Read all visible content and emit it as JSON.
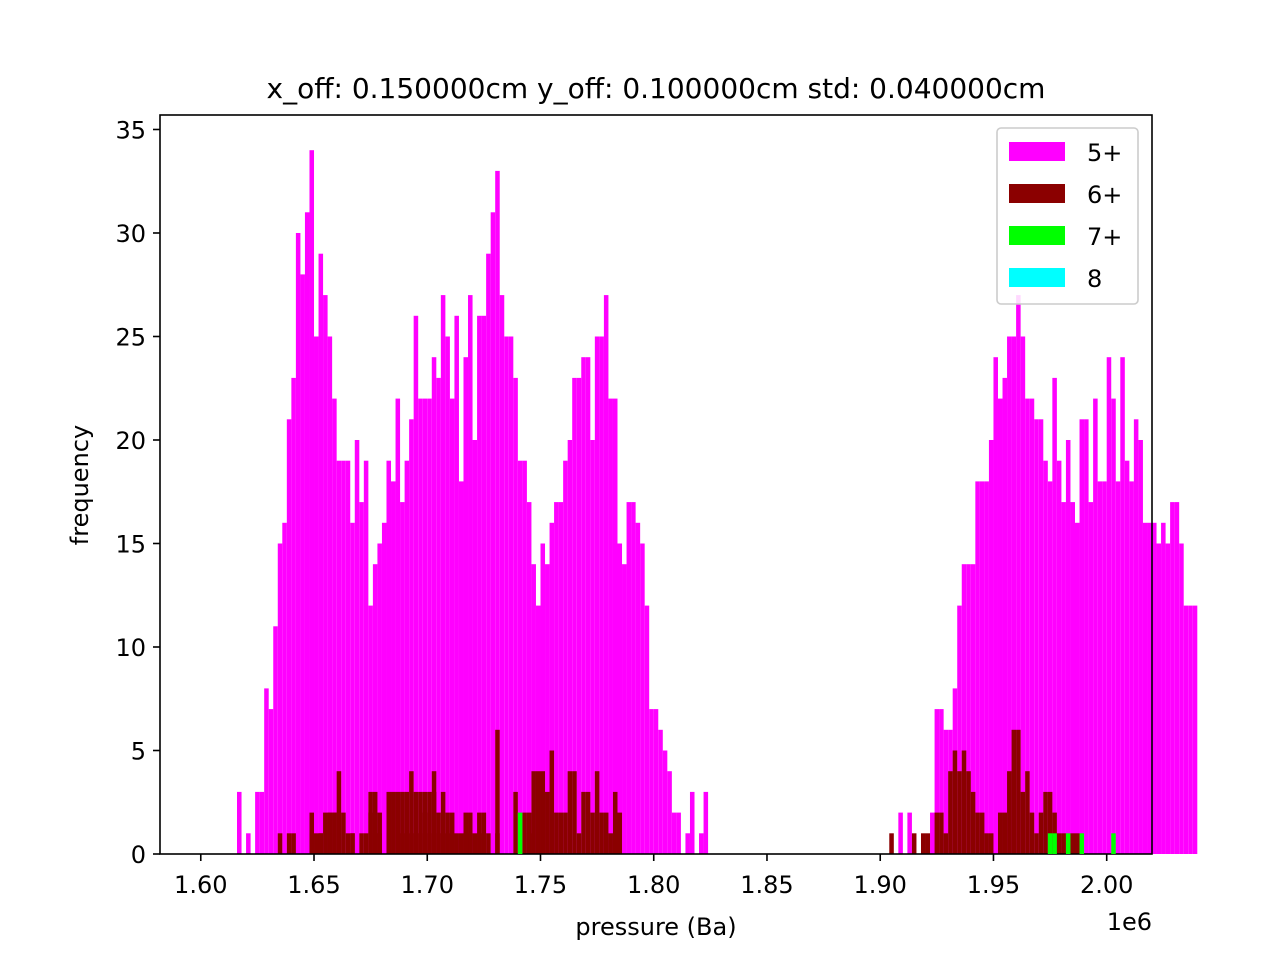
{
  "chart_data": {
    "type": "bar",
    "title": "x_off: 0.150000cm y_off: 0.100000cm std: 0.040000cm",
    "xlabel": "pressure (Ba)",
    "ylabel": "frequency",
    "x_offset_label": "1e6",
    "xlim": [
      1.582,
      2.02
    ],
    "ylim": [
      0,
      35.7
    ],
    "x_ticks": [
      1.6,
      1.65,
      1.7,
      1.75,
      1.8,
      1.85,
      1.9,
      1.95,
      2.0
    ],
    "x_tick_labels": [
      "1.60",
      "1.65",
      "1.70",
      "1.75",
      "1.80",
      "1.85",
      "1.90",
      "1.95",
      "2.00"
    ],
    "y_ticks": [
      0,
      5,
      10,
      15,
      20,
      25,
      30,
      35
    ],
    "y_tick_labels": [
      "0",
      "5",
      "10",
      "15",
      "20",
      "25",
      "30",
      "35"
    ],
    "grid": false,
    "legend_position": "top-right",
    "bin_start": 1.6,
    "bin_width": 0.002,
    "series": [
      {
        "name": "5+",
        "color": "#ff00ff",
        "values": [
          0,
          0,
          0,
          0,
          0,
          0,
          0,
          0,
          3,
          0,
          1,
          0,
          3,
          3,
          8,
          7,
          11,
          15,
          16,
          21,
          23,
          30,
          28,
          31,
          34,
          25,
          29,
          27,
          25,
          22,
          19,
          19,
          19,
          16,
          20,
          17,
          19,
          12,
          14,
          15,
          16,
          19,
          18,
          22,
          17,
          19,
          21,
          26,
          22,
          22,
          22,
          24,
          23,
          27,
          25,
          22,
          26,
          18,
          24,
          27,
          20,
          26,
          26,
          29,
          31,
          33,
          27,
          25,
          25,
          23,
          19,
          19,
          17,
          14,
          12,
          15,
          14,
          16,
          17,
          17,
          19,
          20,
          23,
          23,
          24,
          24,
          20,
          25,
          25,
          27,
          22,
          22,
          15,
          14,
          17,
          17,
          16,
          15,
          12,
          7,
          7,
          6,
          5,
          4,
          2,
          2,
          0,
          1,
          3,
          0,
          1,
          3,
          0,
          0,
          0,
          0,
          0,
          0,
          0,
          0,
          0,
          0,
          0,
          0,
          0,
          0,
          0,
          0,
          0,
          0,
          0,
          0,
          0,
          0,
          0,
          0,
          0,
          0,
          0,
          0,
          0,
          0,
          0,
          0,
          0,
          0,
          0,
          0,
          0,
          0,
          0,
          0,
          0,
          0,
          2,
          0,
          2,
          0,
          0,
          0,
          0,
          2,
          7,
          7,
          6,
          6,
          8,
          12,
          14,
          14,
          14,
          18,
          18,
          18,
          20,
          24,
          22,
          23,
          25,
          25,
          27,
          25,
          22,
          22,
          21,
          21,
          19,
          18,
          23,
          19,
          17,
          20,
          17,
          16,
          21,
          21,
          17,
          22,
          18,
          18,
          24,
          22,
          18,
          24,
          19,
          18,
          21,
          20,
          16,
          16,
          16,
          15,
          16,
          15,
          17,
          17,
          15,
          12,
          12,
          12
        ]
      },
      {
        "name": "6+",
        "color": "#8b0000",
        "values": [
          0,
          0,
          0,
          0,
          0,
          0,
          0,
          0,
          0,
          0,
          0,
          0,
          0,
          0,
          0,
          0,
          0,
          0,
          0,
          1,
          0,
          0,
          0,
          0,
          1,
          0,
          1,
          2,
          2,
          2,
          2,
          0,
          0,
          1,
          0,
          0,
          1,
          2,
          3,
          2,
          0,
          1,
          0,
          0,
          1,
          1,
          4,
          3,
          3,
          3,
          3,
          3,
          1,
          1,
          2,
          1,
          1,
          0,
          1,
          2,
          1,
          2,
          1,
          0,
          0,
          1,
          0,
          0,
          0,
          0,
          0,
          0,
          1,
          0,
          0,
          0,
          0,
          0,
          0,
          0,
          0,
          0,
          0,
          0,
          0,
          0,
          0,
          0,
          0,
          0,
          0,
          0,
          0,
          0,
          0,
          0,
          0,
          0,
          0,
          0,
          0,
          0,
          0,
          0,
          0,
          0,
          0,
          0,
          0,
          0,
          0,
          0,
          0,
          0,
          0,
          0,
          0,
          0,
          0,
          0,
          0,
          0,
          0,
          0,
          0,
          0,
          0,
          0,
          0,
          0,
          0,
          0,
          0,
          0,
          0,
          0,
          0,
          0,
          0,
          0,
          0,
          0,
          0,
          0,
          0,
          0,
          0,
          0,
          0,
          0,
          0,
          0,
          0,
          0,
          0,
          0,
          0,
          0,
          0,
          0,
          0,
          0,
          0,
          0,
          0,
          0,
          0,
          0,
          0,
          0,
          0,
          0,
          0,
          0,
          0,
          0,
          0,
          0,
          0,
          0,
          0,
          0,
          0,
          0,
          0,
          0,
          0,
          0,
          0,
          0,
          0,
          0,
          0,
          0,
          0,
          0,
          0,
          0,
          0,
          0,
          0,
          0,
          0,
          0,
          0,
          0,
          0,
          0,
          0,
          0,
          0,
          0,
          0,
          0,
          0,
          0,
          0,
          0,
          0,
          0,
          0,
          0,
          0,
          0,
          0,
          0,
          0,
          0,
          0,
          0
        ]
      },
      {
        "name": "7+",
        "color": "#00ff00",
        "values": [
          0,
          0,
          0,
          0,
          0,
          0,
          0,
          0,
          0,
          0,
          0,
          0,
          0,
          0,
          0,
          0,
          0,
          0,
          0,
          0,
          0,
          0,
          0,
          0,
          0,
          0,
          0,
          0,
          0,
          0,
          0,
          0,
          0,
          0,
          0,
          0,
          0,
          0,
          0,
          0,
          0,
          0,
          0,
          0,
          0,
          0,
          0,
          0,
          0,
          0,
          0,
          0,
          0,
          0,
          0,
          0,
          0,
          0,
          0,
          0,
          0,
          0,
          0,
          0,
          0,
          0,
          0,
          0,
          0,
          0,
          2,
          0,
          0,
          0,
          0,
          0,
          0,
          0,
          0,
          0,
          0,
          0,
          0,
          0,
          0,
          0,
          0,
          0,
          0,
          0,
          0,
          0,
          0,
          0,
          0,
          0,
          0,
          0,
          0,
          0,
          0,
          0,
          0,
          0,
          0,
          0,
          0,
          0,
          0,
          0,
          0,
          0,
          0,
          0,
          0,
          0,
          0,
          0,
          0,
          0,
          0,
          0,
          0,
          0,
          0,
          0,
          0,
          0,
          0,
          0,
          0,
          0,
          0,
          0,
          0,
          0,
          0,
          0,
          0,
          0,
          0,
          0,
          0,
          0,
          0,
          0,
          0,
          0,
          0,
          0,
          0,
          0,
          0,
          0,
          0,
          0,
          0,
          0,
          0,
          0,
          0,
          0,
          0,
          0,
          0,
          0,
          0,
          0,
          0,
          0,
          0,
          0,
          0,
          0,
          0,
          0,
          0,
          0,
          0,
          0,
          0,
          0,
          0,
          0,
          0,
          0,
          0,
          1,
          1,
          0,
          0,
          1,
          0,
          0,
          1,
          0,
          0,
          0,
          0,
          0,
          0,
          1,
          0,
          0,
          0,
          0,
          0,
          0,
          0,
          0,
          0,
          0,
          0,
          0,
          0,
          0,
          0,
          0,
          0,
          0,
          0,
          0,
          0,
          0,
          0,
          0
        ]
      },
      {
        "name": "8",
        "color": "#00ffff",
        "values": []
      }
    ],
    "series_dark_extra": {
      "positions": [
        1.634,
        1.64,
        1.648,
        1.65,
        1.652,
        1.656,
        1.658,
        1.66,
        1.662,
        1.664,
        1.666,
        1.67,
        1.674,
        1.676,
        1.678,
        1.682,
        1.684,
        1.686,
        1.688,
        1.69,
        1.692,
        1.694,
        1.696,
        1.698,
        1.7,
        1.702,
        1.704,
        1.706,
        1.708,
        1.71,
        1.714,
        1.716,
        1.718,
        1.722,
        1.724,
        1.726,
        1.73,
        1.738,
        1.742,
        1.744,
        1.746,
        1.748,
        1.75,
        1.752,
        1.754,
        1.756,
        1.758,
        1.76,
        1.762,
        1.764,
        1.766,
        1.768,
        1.77,
        1.772,
        1.774,
        1.776,
        1.778,
        1.78,
        1.782,
        1.784,
        1.904,
        1.914,
        1.918,
        1.92,
        1.924,
        1.926,
        1.928,
        1.93,
        1.932,
        1.934,
        1.936,
        1.938,
        1.94,
        1.942,
        1.944,
        1.946,
        1.948,
        1.952,
        1.954,
        1.956,
        1.958,
        1.96,
        1.962,
        1.964,
        1.966,
        1.968,
        1.97,
        1.972,
        1.974,
        1.976,
        1.978,
        1.98,
        1.984,
        1.986
      ],
      "values": [
        1,
        1,
        2,
        1,
        1,
        2,
        2,
        4,
        2,
        1,
        1,
        1,
        3,
        1,
        1,
        3,
        3,
        3,
        3,
        3,
        1,
        1,
        1,
        2,
        1,
        4,
        2,
        3,
        1,
        2,
        1,
        2,
        1,
        1,
        2,
        1,
        6,
        3,
        2,
        2,
        4,
        4,
        4,
        3,
        5,
        2,
        2,
        2,
        4,
        4,
        1,
        3,
        3,
        2,
        4,
        2,
        2,
        1,
        3,
        2,
        1,
        1,
        1,
        1,
        2,
        2,
        1,
        4,
        5,
        4,
        5,
        4,
        3,
        2,
        2,
        1,
        1,
        2,
        2,
        4,
        6,
        6,
        3,
        4,
        2,
        1,
        2,
        3,
        3,
        2,
        1,
        1,
        1,
        1
      ]
    }
  }
}
